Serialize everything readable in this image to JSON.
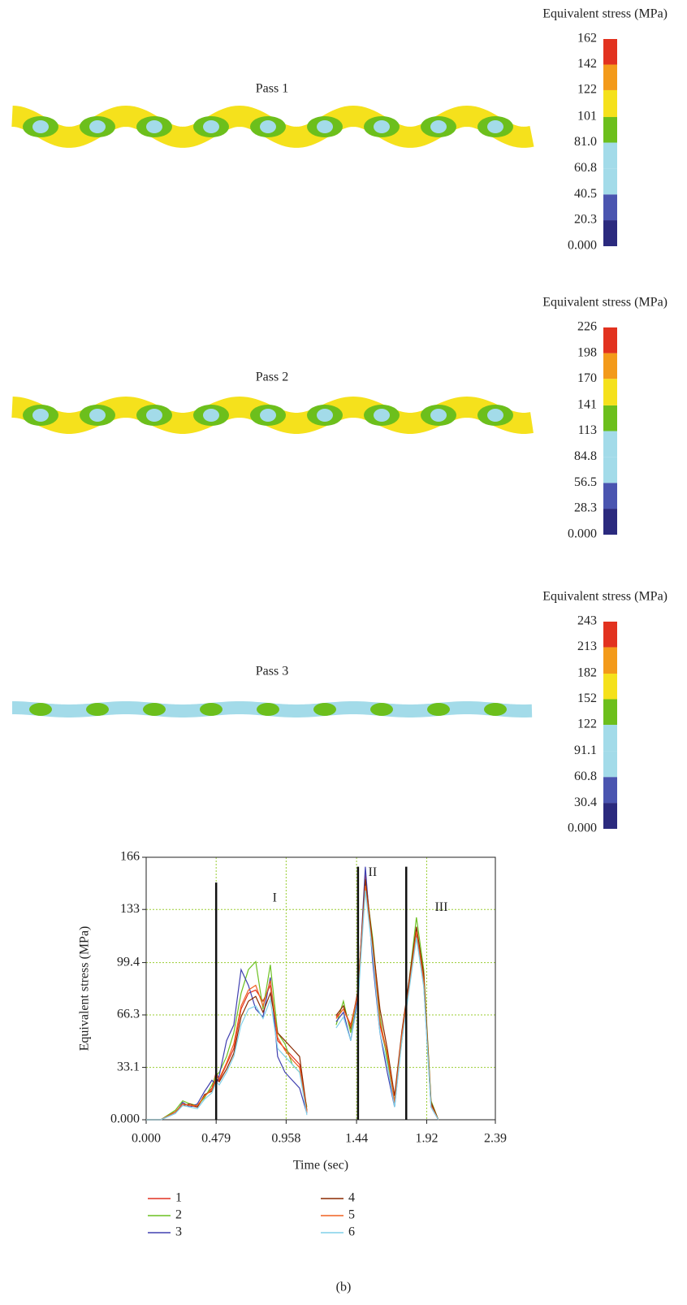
{
  "chart_data": [
    {
      "type": "colorbar",
      "label": "Pass 1",
      "title": "Equivalent stress (MPa)",
      "ylim": [
        0,
        162
      ],
      "yticks": [
        {
          "value": 0,
          "label": "0.000"
        },
        20.3,
        40.5,
        60.8,
        {
          "value": 81,
          "label": "81.0"
        },
        101,
        122,
        142,
        162
      ],
      "colors": [
        "#2b2a7e",
        "#4a55b0",
        "#a3dbe9",
        "#a3dbe9",
        "#6cbf1c",
        "#f5e11c",
        "#f39a1a",
        "#e2321f"
      ]
    },
    {
      "type": "colorbar",
      "label": "Pass 2",
      "title": "Equivalent stress (MPa)",
      "ylim": [
        0,
        226
      ],
      "yticks": [
        {
          "value": 0,
          "label": "0.000"
        },
        28.3,
        56.5,
        84.8,
        113,
        141,
        170,
        198,
        226
      ],
      "colors": [
        "#2b2a7e",
        "#4a55b0",
        "#a3dbe9",
        "#a3dbe9",
        "#6cbf1c",
        "#f5e11c",
        "#f39a1a",
        "#e2321f"
      ]
    },
    {
      "type": "colorbar",
      "label": "Pass 3",
      "title": "Equivalent stress (MPa)",
      "ylim": [
        0,
        243
      ],
      "yticks": [
        {
          "value": 0,
          "label": "0.000"
        },
        30.4,
        60.8,
        91.1,
        122,
        152,
        182,
        213,
        243
      ],
      "colors": [
        "#2b2a7e",
        "#4a55b0",
        "#a3dbe9",
        "#a3dbe9",
        "#6cbf1c",
        "#f5e11c",
        "#f39a1a",
        "#e2321f"
      ]
    },
    {
      "type": "line",
      "x_label": "Time (sec)",
      "y_label": "Equivalent stress (MPa)",
      "caption": "(b)",
      "xlim": [
        0,
        2.39
      ],
      "ylim": [
        0,
        166
      ],
      "grid": true,
      "xticks": [
        {
          "value": 0,
          "label": "0.000"
        },
        0.479,
        0.958,
        1.44,
        1.92,
        2.39
      ],
      "yticks": [
        {
          "value": 0,
          "label": "0.000"
        },
        33.1,
        66.3,
        99.4,
        133,
        166
      ],
      "phase_lines": [
        {
          "x": 0.479,
          "top": 150
        },
        {
          "x": 1.45,
          "top": 160
        },
        {
          "x": 1.78,
          "top": 160
        }
      ],
      "annotations": [
        {
          "text": "I",
          "x": 0.88,
          "y": 140
        },
        {
          "text": "II",
          "x": 1.55,
          "y": 156
        },
        {
          "text": "III",
          "x": 2.02,
          "y": 134
        }
      ],
      "x": [
        0,
        0.1,
        0.2,
        0.25,
        0.3,
        0.35,
        0.4,
        0.45,
        0.479,
        0.5,
        0.55,
        0.6,
        0.65,
        0.7,
        0.75,
        0.8,
        0.85,
        0.9,
        0.95,
        1.0,
        1.05,
        1.1,
        1.2,
        1.3,
        1.35,
        1.4,
        1.45,
        1.5,
        1.55,
        1.6,
        1.65,
        1.7,
        1.75,
        1.8,
        1.85,
        1.9,
        1.95,
        2.0,
        2.1,
        2.2,
        2.39
      ],
      "series": [
        {
          "name": "1",
          "color": "#e03020",
          "values": [
            0,
            0,
            5,
            10,
            9,
            8,
            15,
            20,
            30,
            25,
            35,
            45,
            70,
            80,
            82,
            75,
            85,
            50,
            45,
            40,
            35,
            5,
            null,
            65,
            70,
            60,
            80,
            155,
            110,
            60,
            40,
            10,
            55,
            85,
            120,
            90,
            10,
            0,
            null,
            null,
            null
          ]
        },
        {
          "name": "2",
          "color": "#6cc020",
          "values": [
            0,
            0,
            6,
            12,
            10,
            9,
            14,
            22,
            28,
            30,
            40,
            55,
            80,
            95,
            100,
            70,
            98,
            55,
            48,
            35,
            30,
            8,
            null,
            60,
            75,
            55,
            82,
            150,
            115,
            65,
            38,
            12,
            50,
            88,
            128,
            95,
            12,
            0,
            null,
            null,
            null
          ]
        },
        {
          "name": "3",
          "color": "#4040b0",
          "values": [
            0,
            0,
            4,
            11,
            8,
            10,
            18,
            25,
            22,
            28,
            50,
            60,
            95,
            85,
            70,
            65,
            90,
            40,
            30,
            25,
            20,
            4,
            null,
            62,
            68,
            50,
            78,
            160,
            100,
            55,
            30,
            8,
            52,
            86,
            118,
            85,
            8,
            0,
            null,
            null,
            null
          ]
        },
        {
          "name": "4",
          "color": "#8b2a00",
          "values": [
            0,
            0,
            5,
            9,
            10,
            8,
            16,
            18,
            26,
            24,
            32,
            42,
            65,
            75,
            78,
            68,
            80,
            55,
            50,
            45,
            40,
            6,
            null,
            66,
            72,
            58,
            82,
            152,
            112,
            70,
            45,
            15,
            56,
            88,
            122,
            92,
            11,
            0,
            null,
            null,
            null
          ]
        },
        {
          "name": "5",
          "color": "#f06020",
          "values": [
            0,
            0,
            5,
            10,
            9,
            9,
            15,
            19,
            27,
            26,
            36,
            48,
            72,
            82,
            85,
            72,
            88,
            52,
            44,
            38,
            33,
            5,
            null,
            64,
            70,
            59,
            80,
            148,
            108,
            62,
            42,
            11,
            54,
            84,
            119,
            88,
            9,
            0,
            null,
            null,
            null
          ]
        },
        {
          "name": "6",
          "color": "#80d0e8",
          "values": [
            0,
            0,
            4,
            9,
            8,
            7,
            13,
            17,
            24,
            22,
            30,
            40,
            60,
            70,
            72,
            64,
            76,
            45,
            40,
            35,
            30,
            3,
            null,
            58,
            65,
            50,
            75,
            145,
            105,
            55,
            35,
            8,
            50,
            82,
            115,
            84,
            8,
            0,
            null,
            null,
            null
          ]
        }
      ]
    }
  ]
}
